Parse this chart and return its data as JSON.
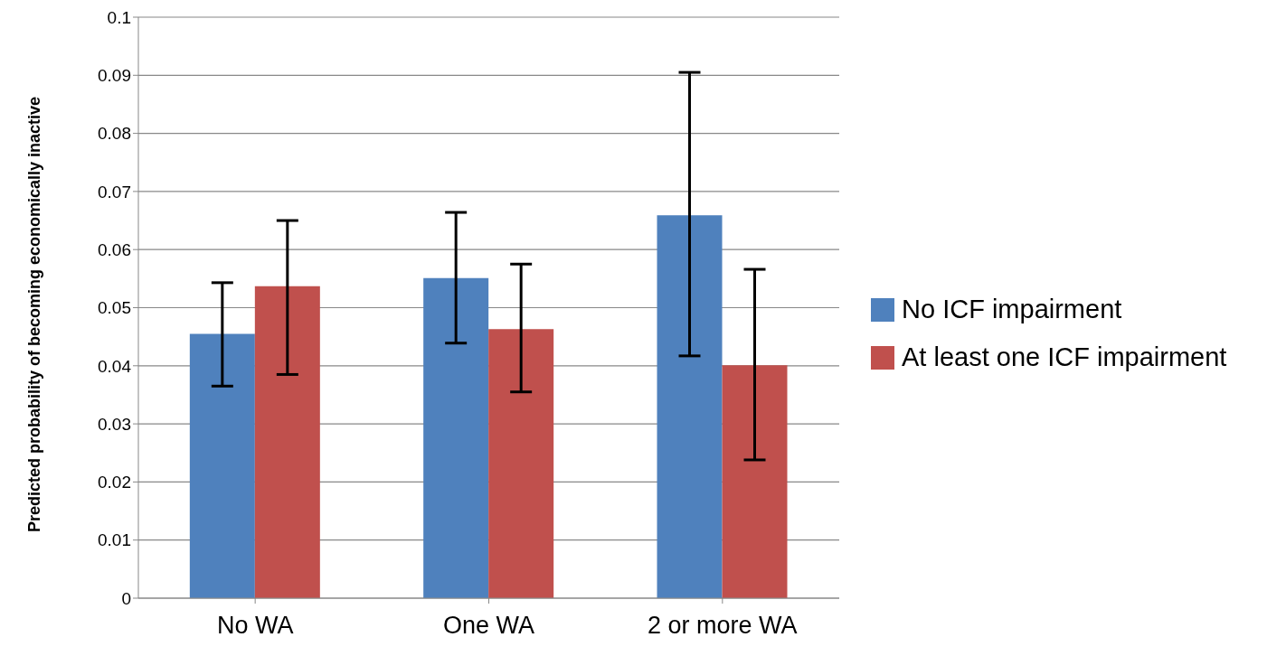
{
  "chart_data": {
    "type": "bar",
    "ylabel": "Predicted probability of becoming economically inactive",
    "categories": [
      "No WA",
      "One WA",
      "2 or more WA"
    ],
    "series": [
      {
        "name": "No ICF impairment",
        "color": "#4f81bd",
        "values": [
          0.0455,
          0.0551,
          0.0659
        ],
        "errors": [
          [
            0.0365,
            0.0543
          ],
          [
            0.0439,
            0.0664
          ],
          [
            0.0417,
            0.0905
          ]
        ]
      },
      {
        "name": "At least one ICF impairment",
        "color": "#c0504d",
        "values": [
          0.0537,
          0.0463,
          0.0401
        ],
        "errors": [
          [
            0.0385,
            0.065
          ],
          [
            0.0355,
            0.0575
          ],
          [
            0.0238,
            0.0566
          ]
        ]
      }
    ],
    "ylim": [
      0,
      0.1
    ],
    "yticks": [
      0,
      0.01,
      0.02,
      0.03,
      0.04,
      0.05,
      0.06,
      0.07,
      0.08,
      0.09,
      0.1
    ],
    "grid": "y",
    "legend": "right"
  }
}
